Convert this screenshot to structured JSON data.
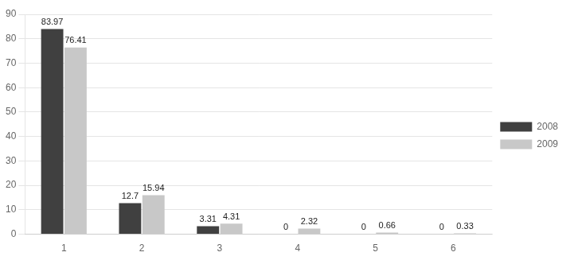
{
  "chart_data": {
    "type": "bar",
    "categories": [
      "1",
      "2",
      "3",
      "4",
      "5",
      "6"
    ],
    "series": [
      {
        "name": "2008",
        "color": "#404040",
        "values": [
          83.97,
          12.7,
          3.31,
          0,
          0,
          0
        ]
      },
      {
        "name": "2009",
        "color": "#c8c8c8",
        "values": [
          76.41,
          15.94,
          4.31,
          2.32,
          0.66,
          0.33
        ]
      }
    ],
    "ylim": [
      0,
      90
    ],
    "yticks": [
      0,
      10,
      20,
      30,
      40,
      50,
      60,
      70,
      80,
      90
    ],
    "grid": true,
    "legend": "right",
    "data_labels": true
  }
}
